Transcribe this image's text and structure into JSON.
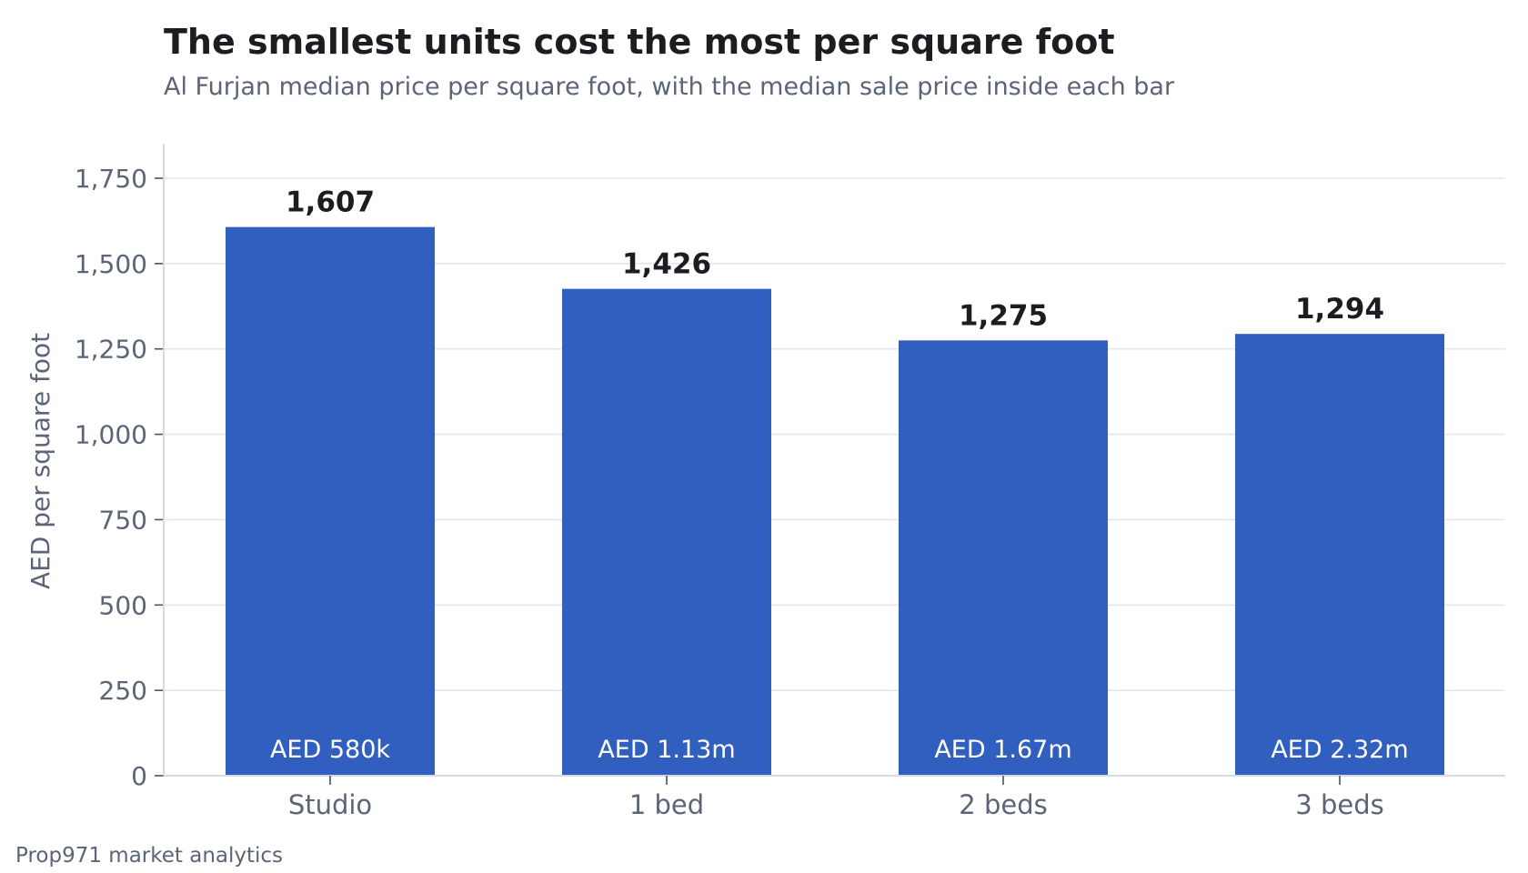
{
  "title": "The smallest units cost the most per square foot",
  "subtitle": "Al Furjan median price per square foot, with the median sale price inside each bar",
  "footer": "Prop971 market analytics",
  "colors": {
    "bar": "#315fbf",
    "grid": "#e4e7ed",
    "axis": "#d5d9e1",
    "tick_text": "#5b6577",
    "value_label": "#1b1d21",
    "inside_label": "#ffffff"
  },
  "chart_data": {
    "type": "bar",
    "categories": [
      "Studio",
      "1 bed",
      "2 beds",
      "3 beds"
    ],
    "values": [
      1607,
      1426,
      1275,
      1294
    ],
    "value_labels": [
      "1,607",
      "1,426",
      "1,275",
      "1,294"
    ],
    "inside_labels": [
      "AED 580k",
      "AED 1.13m",
      "AED 1.67m",
      "AED 2.32m"
    ],
    "xlabel": "",
    "ylabel": "AED per square foot",
    "ylim": [
      0,
      1850
    ],
    "yticks": [
      0,
      250,
      500,
      750,
      1000,
      1250,
      1500,
      1750
    ],
    "ytick_labels": [
      "0",
      "250",
      "500",
      "750",
      "1,000",
      "1,250",
      "1,500",
      "1,750"
    ],
    "grid": true,
    "legend": "none"
  }
}
